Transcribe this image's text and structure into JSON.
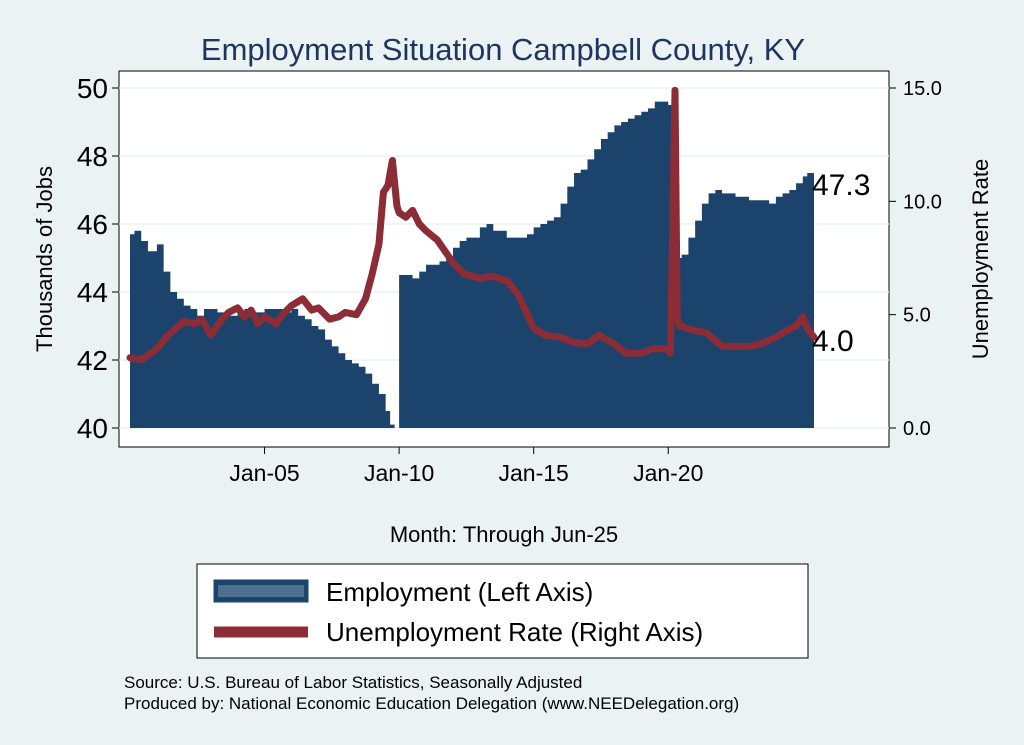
{
  "chart_data": {
    "type": "area+line",
    "title": "Employment Situation Campbell  County, KY",
    "xlabel": "Month: Through Jun-25",
    "ylabel_left": "Thousands of Jobs",
    "ylabel_right": "Unemployment Rate",
    "x_start": "2000-01",
    "x_end": "2025-06",
    "x_ticks": [
      {
        "date": "2005-01",
        "label": "Jan-05"
      },
      {
        "date": "2010-01",
        "label": "Jan-10"
      },
      {
        "date": "2015-01",
        "label": "Jan-15"
      },
      {
        "date": "2020-01",
        "label": "Jan-20"
      }
    ],
    "y_left": {
      "range": [
        40,
        50
      ],
      "ticks": [
        "40",
        "42",
        "44",
        "46",
        "48",
        "50"
      ]
    },
    "y_right": {
      "range": [
        0,
        15
      ],
      "ticks": [
        "0.0",
        "5.0",
        "10.0",
        "15.0"
      ]
    },
    "series": [
      {
        "name": "Employment (Left Axis)",
        "axis": "left",
        "style": "area",
        "color": "#1b436b",
        "x": [
          "2000-01",
          "2000-03",
          "2000-06",
          "2000-09",
          "2001-01",
          "2001-04",
          "2001-07",
          "2001-10",
          "2002-01",
          "2002-04",
          "2002-07",
          "2002-10",
          "2003-01",
          "2003-04",
          "2003-07",
          "2003-10",
          "2004-01",
          "2004-04",
          "2004-07",
          "2004-10",
          "2005-01",
          "2005-04",
          "2005-07",
          "2005-10",
          "2006-01",
          "2006-04",
          "2006-07",
          "2006-10",
          "2007-01",
          "2007-04",
          "2007-07",
          "2007-10",
          "2008-01",
          "2008-04",
          "2008-07",
          "2008-10",
          "2009-01",
          "2009-04",
          "2009-07",
          "2009-09",
          "2009-11",
          "2010-01",
          "2010-04",
          "2010-07",
          "2010-10",
          "2011-01",
          "2011-04",
          "2011-07",
          "2011-10",
          "2012-01",
          "2012-04",
          "2012-07",
          "2012-10",
          "2013-01",
          "2013-04",
          "2013-07",
          "2013-10",
          "2014-01",
          "2014-04",
          "2014-07",
          "2014-10",
          "2015-01",
          "2015-04",
          "2015-07",
          "2015-10",
          "2016-01",
          "2016-04",
          "2016-07",
          "2016-10",
          "2017-01",
          "2017-04",
          "2017-07",
          "2017-10",
          "2018-01",
          "2018-04",
          "2018-07",
          "2018-10",
          "2019-01",
          "2019-04",
          "2019-07",
          "2019-10",
          "2020-01",
          "2020-03",
          "2020-04",
          "2020-07",
          "2020-10",
          "2021-01",
          "2021-04",
          "2021-07",
          "2021-10",
          "2022-01",
          "2022-04",
          "2022-07",
          "2022-10",
          "2023-01",
          "2023-04",
          "2023-07",
          "2023-10",
          "2024-01",
          "2024-04",
          "2024-07",
          "2024-10",
          "2025-01",
          "2025-03",
          "2025-06"
        ],
        "values": [
          45.7,
          45.8,
          45.5,
          45.2,
          45.4,
          44.6,
          44.0,
          43.8,
          43.6,
          43.5,
          43.3,
          43.5,
          43.5,
          43.4,
          43.3,
          43.3,
          43.4,
          43.5,
          43.4,
          43.4,
          43.5,
          43.5,
          43.5,
          43.4,
          43.5,
          43.3,
          43.2,
          43.0,
          42.9,
          42.6,
          42.4,
          42.2,
          42.0,
          41.9,
          41.8,
          41.6,
          41.3,
          41.0,
          40.5,
          40.1,
          40.0,
          44.5,
          44.5,
          44.4,
          44.6,
          44.8,
          44.8,
          44.9,
          45.0,
          45.3,
          45.5,
          45.6,
          45.6,
          45.9,
          46.0,
          45.8,
          45.8,
          45.6,
          45.6,
          45.6,
          45.7,
          45.9,
          46.0,
          46.1,
          46.2,
          46.6,
          47.1,
          47.5,
          47.6,
          47.9,
          48.2,
          48.5,
          48.7,
          48.9,
          49.0,
          49.1,
          49.2,
          49.3,
          49.4,
          49.6,
          49.6,
          49.5,
          49.6,
          45.0,
          45.1,
          45.6,
          46.1,
          46.6,
          46.9,
          47.0,
          46.9,
          46.9,
          46.8,
          46.8,
          46.7,
          46.7,
          46.7,
          46.6,
          46.8,
          46.9,
          47.0,
          47.2,
          47.4,
          47.5,
          47.3
        ]
      },
      {
        "name": "Unemployment Rate (Right Axis)",
        "axis": "right",
        "style": "line",
        "color": "#8b2c36",
        "x": [
          "2000-01",
          "2000-06",
          "2001-01",
          "2001-06",
          "2002-01",
          "2002-06",
          "2002-09",
          "2003-01",
          "2003-06",
          "2003-09",
          "2004-01",
          "2004-04",
          "2004-07",
          "2004-10",
          "2005-01",
          "2005-06",
          "2005-09",
          "2006-01",
          "2006-06",
          "2006-10",
          "2007-01",
          "2007-06",
          "2007-10",
          "2008-01",
          "2008-06",
          "2008-10",
          "2009-01",
          "2009-04",
          "2009-06",
          "2009-08",
          "2009-10",
          "2009-12",
          "2010-01",
          "2010-04",
          "2010-07",
          "2010-10",
          "2011-01",
          "2011-06",
          "2012-01",
          "2012-06",
          "2013-01",
          "2013-06",
          "2014-01",
          "2014-06",
          "2015-01",
          "2015-06",
          "2016-01",
          "2016-06",
          "2017-01",
          "2017-06",
          "2018-01",
          "2018-06",
          "2019-01",
          "2019-06",
          "2019-12",
          "2020-02",
          "2020-04",
          "2020-05",
          "2020-06",
          "2020-07",
          "2020-09",
          "2021-01",
          "2021-06",
          "2022-01",
          "2022-06",
          "2023-01",
          "2023-06",
          "2024-01",
          "2024-06",
          "2024-10",
          "2025-01",
          "2025-03",
          "2025-06"
        ],
        "values": [
          3.1,
          3.0,
          3.5,
          4.1,
          4.7,
          4.6,
          4.8,
          4.1,
          4.8,
          5.1,
          5.3,
          4.9,
          5.2,
          4.6,
          4.9,
          4.6,
          5.0,
          5.4,
          5.7,
          5.2,
          5.3,
          4.8,
          4.9,
          5.1,
          5.0,
          5.7,
          6.8,
          8.1,
          10.4,
          10.7,
          11.8,
          9.8,
          9.5,
          9.3,
          9.6,
          9.0,
          8.7,
          8.3,
          7.3,
          6.8,
          6.6,
          6.7,
          6.5,
          5.9,
          4.4,
          4.1,
          4.0,
          3.8,
          3.7,
          4.1,
          3.7,
          3.3,
          3.3,
          3.5,
          3.5,
          3.3,
          14.9,
          4.9,
          4.5,
          4.5,
          4.4,
          4.3,
          4.2,
          3.6,
          3.6,
          3.6,
          3.7,
          4.0,
          4.3,
          4.5,
          4.9,
          4.4,
          4.0
        ]
      }
    ],
    "end_labels": {
      "employment": "47.3",
      "unemployment": "4.0"
    },
    "legend": {
      "placement": "bottom",
      "entries": [
        "Employment (Left Axis)",
        "Unemployment Rate (Right Axis)"
      ]
    },
    "grid": "horizontal"
  },
  "footer": {
    "source": "Source: U.S. Bureau of Labor Statistics, Seasonally Adjusted",
    "produced_by": "Produced by: National Economic Education Delegation (www.NEEDelegation.org)"
  },
  "colors": {
    "background": "#eaf2f3",
    "plot_background": "#ffffff",
    "title": "#1e3560",
    "employment": "#1b436b",
    "unemployment": "#8b2c36"
  }
}
